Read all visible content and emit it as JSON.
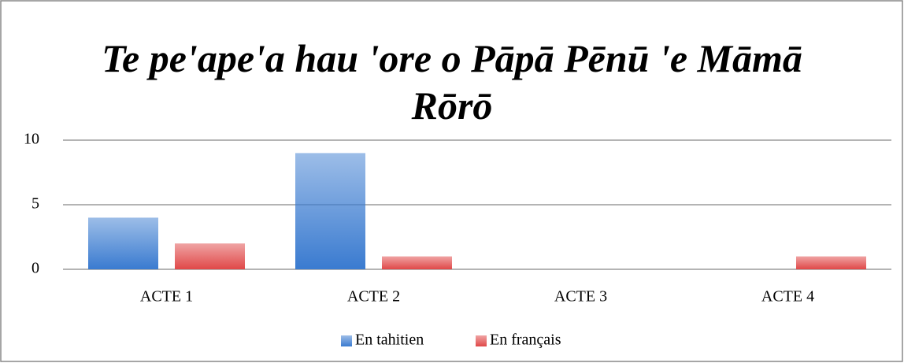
{
  "chart_data": {
    "type": "bar",
    "title": "Te pe'ape'a hau 'ore o Pāpā Pēnū 'e Māmā Rōrō",
    "categories": [
      "ACTE 1",
      "ACTE 2",
      "ACTE 3",
      "ACTE 4"
    ],
    "series": [
      {
        "name": "En tahitien",
        "color": "#3a7bd0",
        "values": [
          4,
          9,
          0,
          0
        ]
      },
      {
        "name": "En français",
        "color": "#e04848",
        "values": [
          2,
          1,
          0,
          1
        ]
      }
    ],
    "ylim": [
      0,
      10
    ],
    "yticks": [
      0,
      5,
      10
    ],
    "grid": true,
    "legend": "bottom"
  }
}
